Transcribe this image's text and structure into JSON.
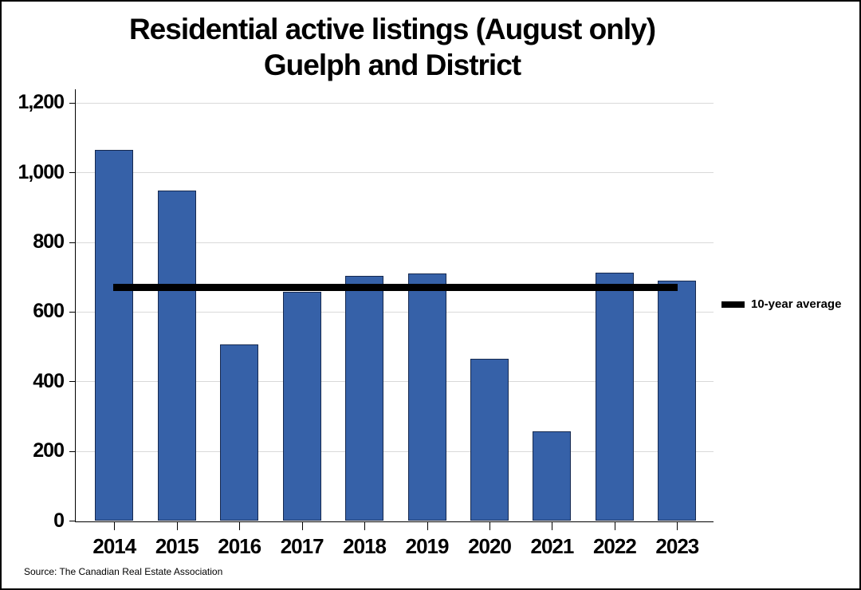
{
  "title": {
    "line1": "Residential active listings (August only)",
    "line2": "Guelph and District"
  },
  "legend": {
    "label": "10-year average",
    "swatch_color": "#000000"
  },
  "source": "Source: The Canadian Real Estate Association",
  "chart_data": {
    "type": "bar",
    "title": "Residential active listings (August only) Guelph and District",
    "categories": [
      "2014",
      "2015",
      "2016",
      "2017",
      "2018",
      "2019",
      "2020",
      "2021",
      "2022",
      "2023"
    ],
    "values": [
      1065,
      950,
      508,
      658,
      703,
      712,
      467,
      257,
      714,
      690
    ],
    "average_line": {
      "label": "10-year average",
      "value": 672
    },
    "y_ticks": [
      "0",
      "200",
      "400",
      "600",
      "800",
      "1,000",
      "1,200"
    ],
    "y_tick_values": [
      0,
      200,
      400,
      600,
      800,
      1000,
      1200
    ],
    "ylim": [
      0,
      1200
    ],
    "xlabel": "",
    "ylabel": "",
    "grid": "horizontal",
    "legend_position": "right-outside",
    "bar_color": "#3661a8",
    "bar_border_color": "#16294f",
    "average_line_color": "#000000",
    "gridline_color": "#d9d9d9"
  }
}
